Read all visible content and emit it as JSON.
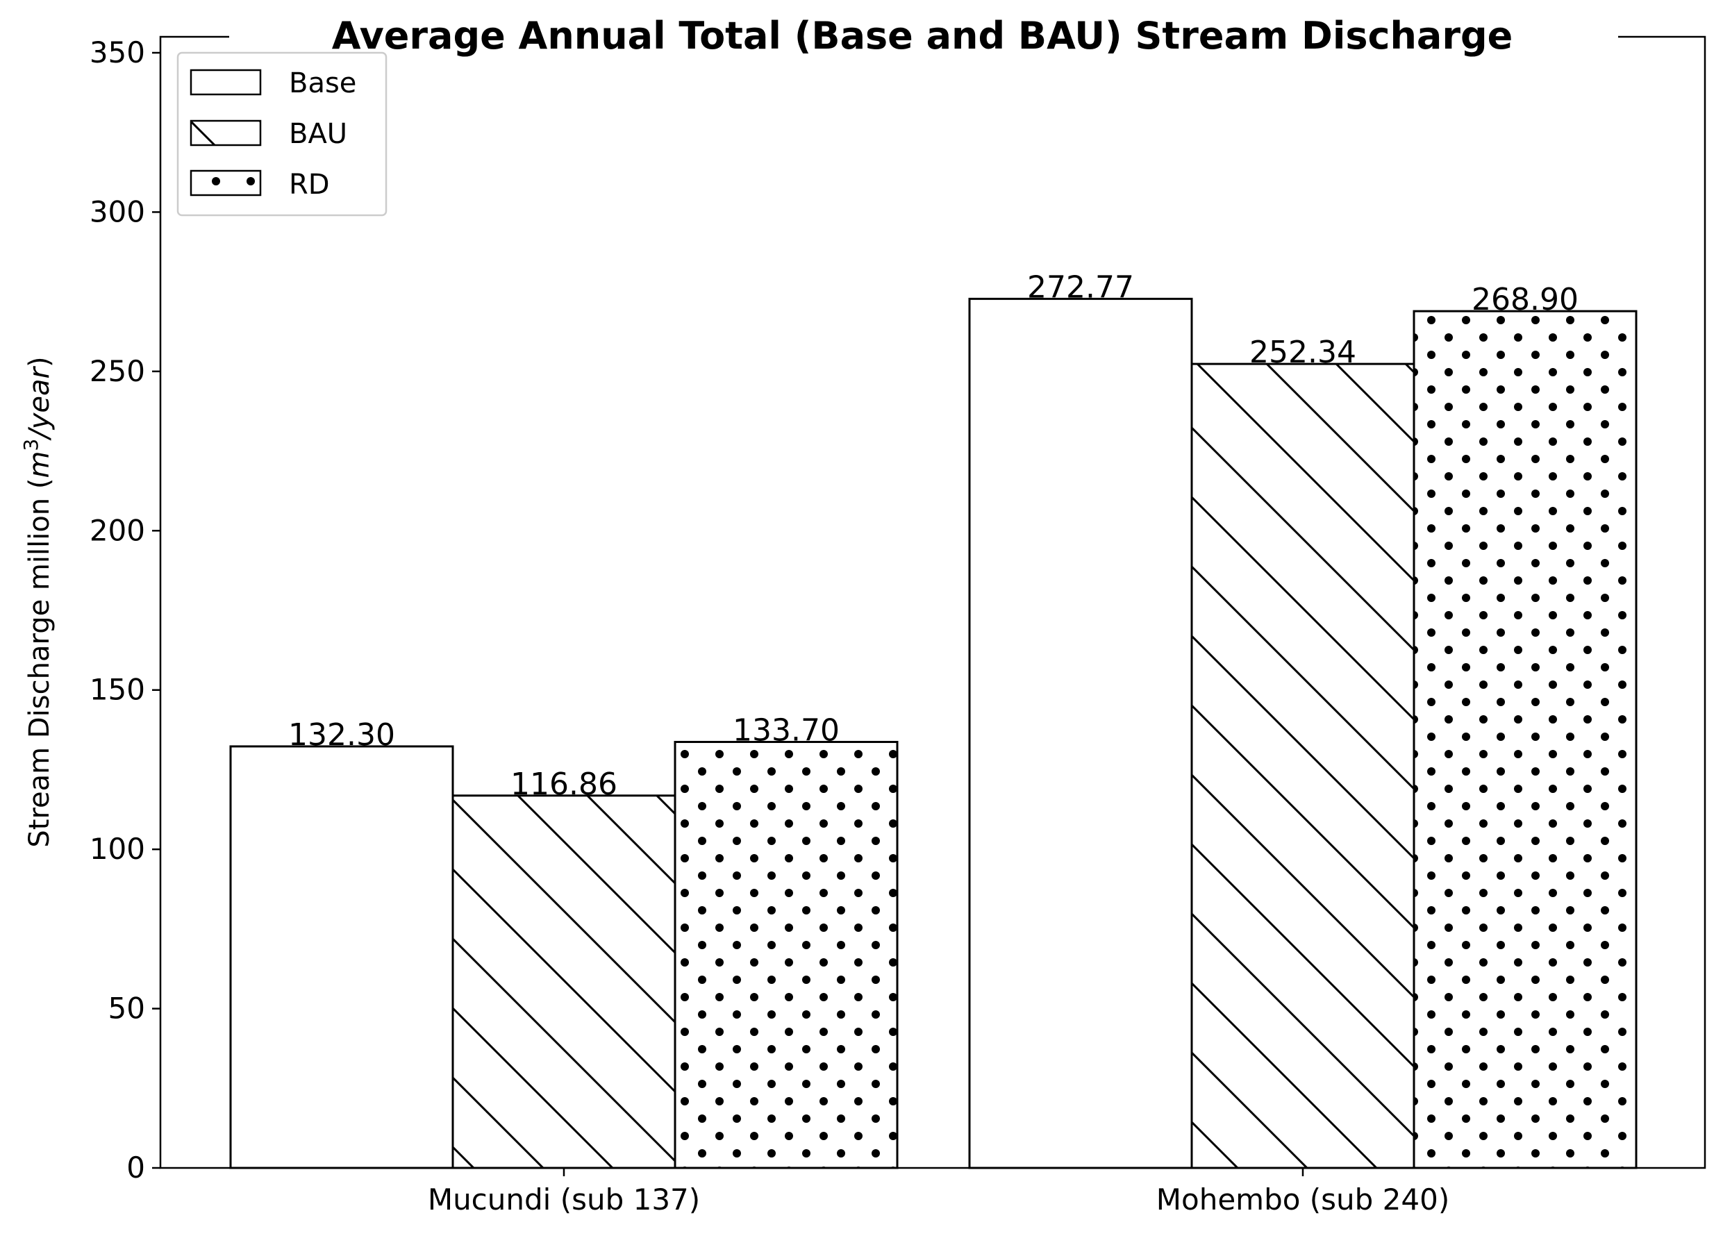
{
  "chart_data": {
    "type": "bar",
    "title": "Average Annual Total (Base and BAU) Stream Discharge",
    "ylabel": "Stream Discharge million (m³/year)",
    "ylabel_parts": {
      "prefix": "Stream Discharge million (",
      "m": "m",
      "sup": "3",
      "unit": "/year",
      "suffix": ")"
    },
    "xlabel": "",
    "categories": [
      "Mucundi (sub 137)",
      "Mohembo (sub 240)"
    ],
    "series": [
      {
        "name": "Base",
        "pattern": "none",
        "values": [
          132.3,
          272.77
        ],
        "labels": [
          "132.30",
          "272.77"
        ]
      },
      {
        "name": "BAU",
        "pattern": "diagonal",
        "values": [
          116.86,
          252.34
        ],
        "labels": [
          "116.86",
          "252.34"
        ]
      },
      {
        "name": "RD",
        "pattern": "dots",
        "values": [
          133.7,
          268.9
        ],
        "labels": [
          "133.70",
          "268.90"
        ]
      }
    ],
    "ylim": [
      0,
      355
    ],
    "yticks": [
      0,
      50,
      100,
      150,
      200,
      250,
      300,
      350
    ],
    "grid": false,
    "legend_position": "top-left",
    "colors": {
      "fill": "#ffffff",
      "edge": "#000000"
    }
  }
}
